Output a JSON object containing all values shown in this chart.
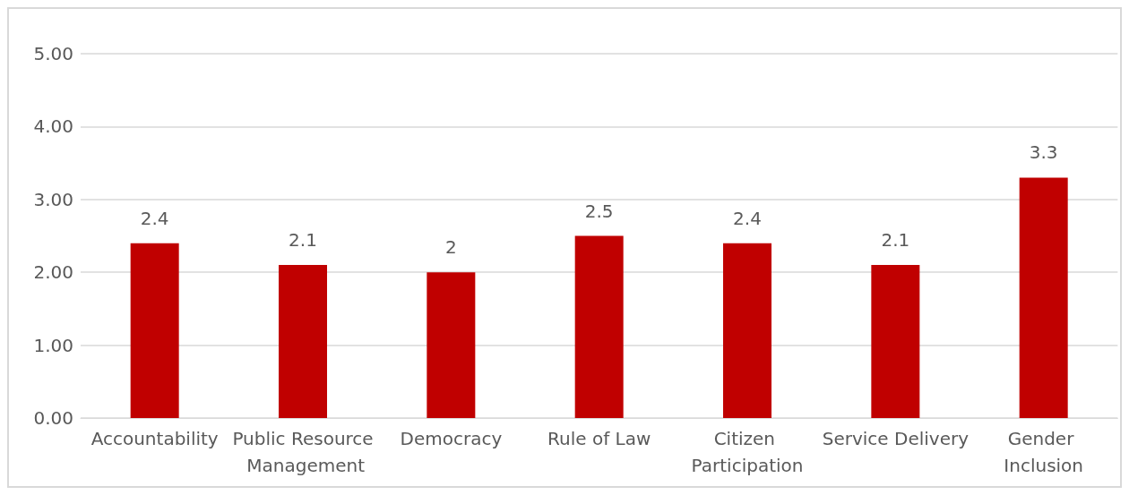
{
  "chart_data": {
    "type": "bar",
    "categories": [
      "Accountability",
      "Public Resource Management",
      "Democracy",
      "Rule of Law",
      "Citizen Participation",
      "Service Delivery",
      "Gender Inclusion"
    ],
    "values": [
      2.4,
      2.1,
      2,
      2.5,
      2.4,
      2.1,
      3.3
    ],
    "color": "#c00000",
    "ylim": [
      0,
      5
    ],
    "yticks": [
      {
        "value": 0,
        "label": "0.00"
      },
      {
        "value": 1,
        "label": "1.00"
      },
      {
        "value": 2,
        "label": "2.00"
      },
      {
        "value": 3,
        "label": "3.00"
      },
      {
        "value": 4,
        "label": "4.00"
      },
      {
        "value": 5,
        "label": "5.00"
      }
    ],
    "grid": "y",
    "data_labels": true
  }
}
